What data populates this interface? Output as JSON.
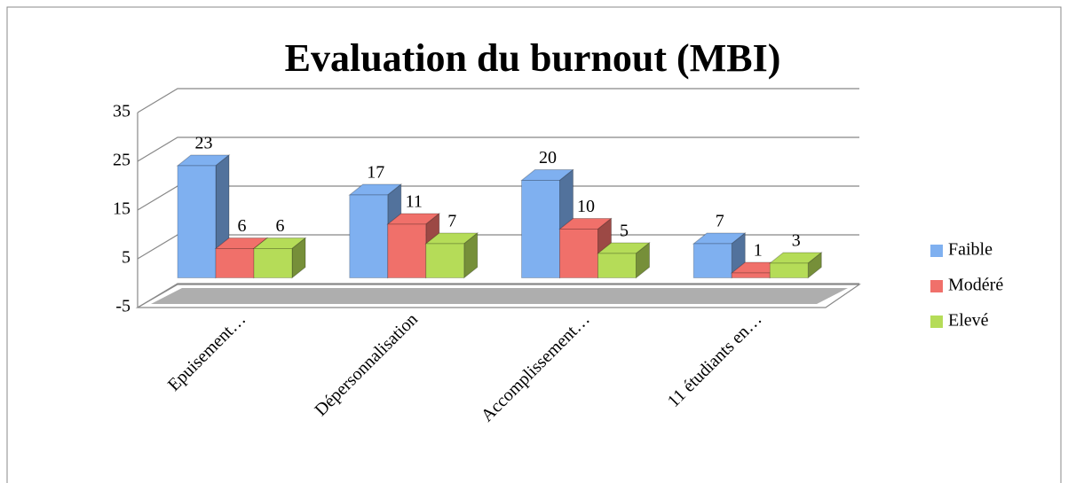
{
  "chart_data": {
    "type": "bar3d",
    "title": "Evaluation du burnout (MBI)",
    "categories": [
      "Epuisement…",
      "Dépersonnalisation",
      "Accomplissement…",
      "11 étudiants en…"
    ],
    "series": [
      {
        "name": "Faible",
        "color": "#7fb0f0",
        "values": [
          23,
          17,
          20,
          7
        ]
      },
      {
        "name": "Modéré",
        "color": "#f0706a",
        "values": [
          6,
          11,
          10,
          1
        ]
      },
      {
        "name": "Elevé",
        "color": "#b5dc58",
        "values": [
          6,
          7,
          5,
          3
        ]
      }
    ],
    "ylim": [
      -5,
      35
    ],
    "yticks": [
      -5,
      5,
      15,
      25,
      35
    ],
    "grid": true,
    "legend": "right"
  }
}
